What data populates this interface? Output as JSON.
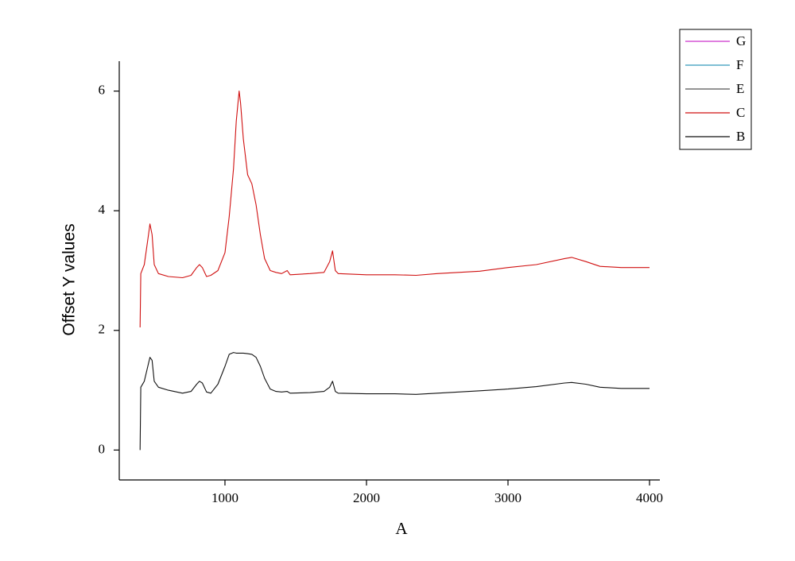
{
  "chart_data": {
    "type": "line",
    "xlabel": "A",
    "ylabel": "Offset Y values",
    "xlim": [
      253,
      4073
    ],
    "ylim": [
      -0.5,
      6.5
    ],
    "xticks": [
      1000,
      2000,
      3000,
      4000
    ],
    "yticks": [
      0,
      2,
      4,
      6
    ],
    "x": [
      400,
      405,
      430,
      460,
      470,
      485,
      500,
      530,
      600,
      700,
      760,
      800,
      820,
      840,
      870,
      900,
      950,
      1000,
      1030,
      1060,
      1080,
      1100,
      1110,
      1130,
      1160,
      1190,
      1220,
      1250,
      1280,
      1320,
      1360,
      1400,
      1440,
      1460,
      1600,
      1700,
      1740,
      1760,
      1780,
      1800,
      2000,
      2200,
      2350,
      2500,
      2800,
      3000,
      3200,
      3400,
      3450,
      3550,
      3650,
      3800,
      4000
    ],
    "series": [
      {
        "name": "G",
        "color": "#cc33cc",
        "values": [
          null,
          null,
          null,
          null,
          null,
          null,
          null,
          null,
          null,
          null,
          null,
          null,
          null,
          null,
          null,
          null,
          null,
          null,
          null,
          null,
          null,
          null,
          null,
          null,
          null,
          null,
          null,
          null,
          null,
          null,
          null,
          null,
          null,
          null,
          null,
          null,
          null,
          null,
          null,
          null,
          null,
          null,
          null,
          null,
          null,
          null,
          null,
          null,
          null,
          null,
          null,
          null,
          null
        ]
      },
      {
        "name": "F",
        "color": "#3399bb",
        "values": [
          null,
          null,
          null,
          null,
          null,
          null,
          null,
          null,
          null,
          null,
          null,
          null,
          null,
          null,
          null,
          null,
          null,
          null,
          null,
          null,
          null,
          null,
          null,
          null,
          null,
          null,
          null,
          null,
          null,
          null,
          null,
          null,
          null,
          null,
          null,
          null,
          null,
          null,
          null,
          null,
          null,
          null,
          null,
          null,
          null,
          null,
          null,
          null,
          null,
          null,
          null,
          null,
          null
        ]
      },
      {
        "name": "E",
        "color": "#555555",
        "values": [
          null,
          null,
          null,
          null,
          null,
          null,
          null,
          null,
          null,
          null,
          null,
          null,
          null,
          null,
          null,
          null,
          null,
          null,
          null,
          null,
          null,
          null,
          null,
          null,
          null,
          null,
          null,
          null,
          null,
          null,
          null,
          null,
          null,
          null,
          null,
          null,
          null,
          null,
          null,
          null,
          null,
          null,
          null,
          null,
          null,
          null,
          null,
          null,
          null,
          null,
          null,
          null,
          null
        ]
      },
      {
        "name": "C",
        "color": "#d01010",
        "values": [
          2.05,
          2.95,
          3.1,
          3.6,
          3.78,
          3.6,
          3.1,
          2.95,
          2.9,
          2.88,
          2.92,
          3.05,
          3.1,
          3.05,
          2.9,
          2.92,
          3.0,
          3.3,
          3.9,
          4.7,
          5.5,
          6.0,
          5.8,
          5.2,
          4.6,
          4.45,
          4.1,
          3.6,
          3.2,
          3.0,
          2.97,
          2.95,
          3.0,
          2.93,
          2.95,
          2.97,
          3.15,
          3.33,
          3.0,
          2.95,
          2.93,
          2.93,
          2.92,
          2.95,
          2.99,
          3.05,
          3.1,
          3.2,
          3.22,
          3.15,
          3.07,
          3.05,
          3.05
        ]
      },
      {
        "name": "B",
        "color": "#111111",
        "values": [
          0.0,
          1.05,
          1.15,
          1.45,
          1.55,
          1.5,
          1.15,
          1.05,
          1.0,
          0.95,
          0.98,
          1.1,
          1.15,
          1.12,
          0.97,
          0.95,
          1.1,
          1.4,
          1.6,
          1.63,
          1.62,
          1.62,
          1.62,
          1.62,
          1.61,
          1.6,
          1.55,
          1.4,
          1.2,
          1.02,
          0.98,
          0.97,
          0.98,
          0.95,
          0.96,
          0.98,
          1.05,
          1.15,
          0.98,
          0.95,
          0.94,
          0.94,
          0.93,
          0.95,
          0.99,
          1.02,
          1.06,
          1.12,
          1.13,
          1.1,
          1.05,
          1.03,
          1.03
        ]
      }
    ]
  }
}
